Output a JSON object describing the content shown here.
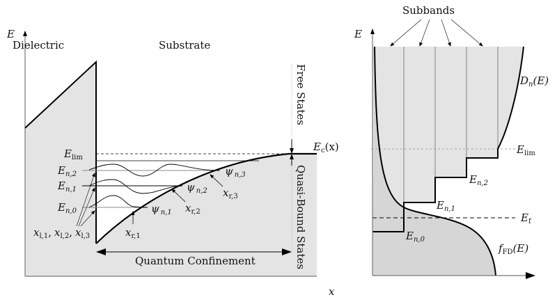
{
  "left_panel": {
    "y_axis_label": "E",
    "x_axis_label": "x",
    "region_dielectric": "Dielectric",
    "region_substrate": "Substrate",
    "free_states": "Free States",
    "quasi_bound_states": "Quasi-Bound States",
    "quantum_confinement": "Quantum Confinement",
    "e_lim": {
      "main": "E",
      "sub": "lim"
    },
    "ec": {
      "main": "E",
      "sub": "c",
      "tail": "(x)"
    },
    "levels": [
      {
        "main": "E",
        "sub": "n,2"
      },
      {
        "main": "E",
        "sub": "n,1"
      },
      {
        "main": "E",
        "sub": "n,0"
      }
    ],
    "wavefunctions": [
      {
        "main": "ψ",
        "sub": "n,1"
      },
      {
        "main": "ψ",
        "sub": "n,2"
      },
      {
        "main": "ψ",
        "sub": "n,3"
      }
    ],
    "right_turning_points": [
      {
        "main": "x",
        "sub": "r,1"
      },
      {
        "main": "x",
        "sub": "r,2"
      },
      {
        "main": "x",
        "sub": "r,3"
      }
    ],
    "left_turning_points": {
      "a": {
        "main": "x",
        "sub": "l,1"
      },
      "b": {
        "main": "x",
        "sub": "l,2"
      },
      "c": {
        "main": "x",
        "sub": "l,3"
      },
      "sep": ","
    }
  },
  "right_panel": {
    "y_axis_label": "E",
    "subbands_label": "Subbands",
    "dos": {
      "main": "D",
      "sub": "n",
      "tail": "(E)"
    },
    "e_lim": {
      "main": "E",
      "sub": "lim"
    },
    "e_f": {
      "main": "E",
      "sub": "f"
    },
    "fermi": {
      "main": "f",
      "sub": "FD",
      "tail": "(E)"
    },
    "levels": [
      {
        "main": "E",
        "sub": "n,2"
      },
      {
        "main": "E",
        "sub": "n,1"
      },
      {
        "main": "E",
        "sub": "n,0"
      }
    ]
  },
  "colors": {
    "fill_light": "#e4e4e4",
    "fill_dark": "#d6d6d6",
    "line": "#000000"
  }
}
